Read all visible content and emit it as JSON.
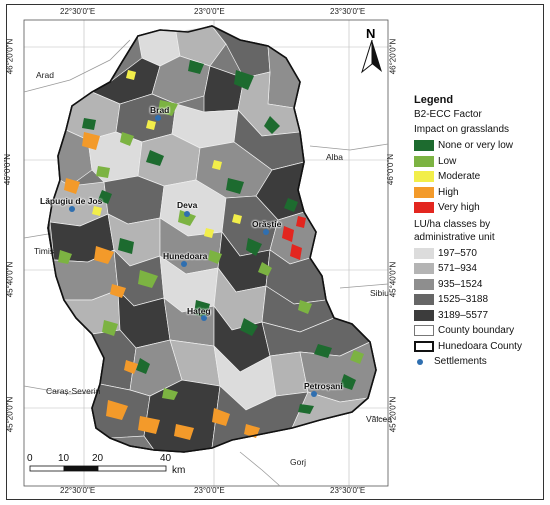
{
  "coordinates": {
    "top": [
      "22°30'0\"E",
      "23°0'0\"E",
      "23°30'0\"E"
    ],
    "bottom": [
      "22°30'0\"E",
      "23°0'0\"E",
      "23°30'0\"E"
    ],
    "left": [
      "46°20'0\"N",
      "46°0'0\"N",
      "45°40'0\"N",
      "45°20'0\"N"
    ],
    "right": [
      "46°20'0\"N",
      "46°0'0\"N",
      "45°40'0\"N",
      "45°20'0\"N"
    ]
  },
  "north_arrow": {
    "label": "N"
  },
  "scale_bar": {
    "ticks": [
      "0",
      "10",
      "20",
      "40"
    ],
    "unit": "km"
  },
  "neighbors": [
    "Arad",
    "Alba",
    "Timiș",
    "Sibiu",
    "Caraș-Severin",
    "Vâlcea",
    "Gorj"
  ],
  "settlements": [
    "Brad",
    "Deva",
    "Lăpugiu de Jos",
    "Orăștie",
    "Hunedoara",
    "Hațeg",
    "Petroșani"
  ],
  "legend": {
    "title": "Legend",
    "factor": "B2-ECC Factor",
    "impact_heading": "Impact on grasslands",
    "impact_classes": [
      {
        "label": "None or very low",
        "color": "#1d6b2f"
      },
      {
        "label": "Low",
        "color": "#7cb342"
      },
      {
        "label": "Moderate",
        "color": "#f2ee4a"
      },
      {
        "label": "High",
        "color": "#f39a2a"
      },
      {
        "label": "Very high",
        "color": "#e3261f"
      }
    ],
    "lu_heading_1": "LU/ha classes by",
    "lu_heading_2": "administrative unit",
    "lu_classes": [
      {
        "label": "197–570",
        "color": "#dcdcdc"
      },
      {
        "label": "571–934",
        "color": "#b4b4b4"
      },
      {
        "label": "935–1524",
        "color": "#8e8e8e"
      },
      {
        "label": "1525–3188",
        "color": "#666666"
      },
      {
        "label": "3189–5577",
        "color": "#3c3c3c"
      }
    ],
    "county_boundary": "County boundary",
    "hunedoara_county": "Hunedoara County",
    "settlements": "Settlements"
  }
}
